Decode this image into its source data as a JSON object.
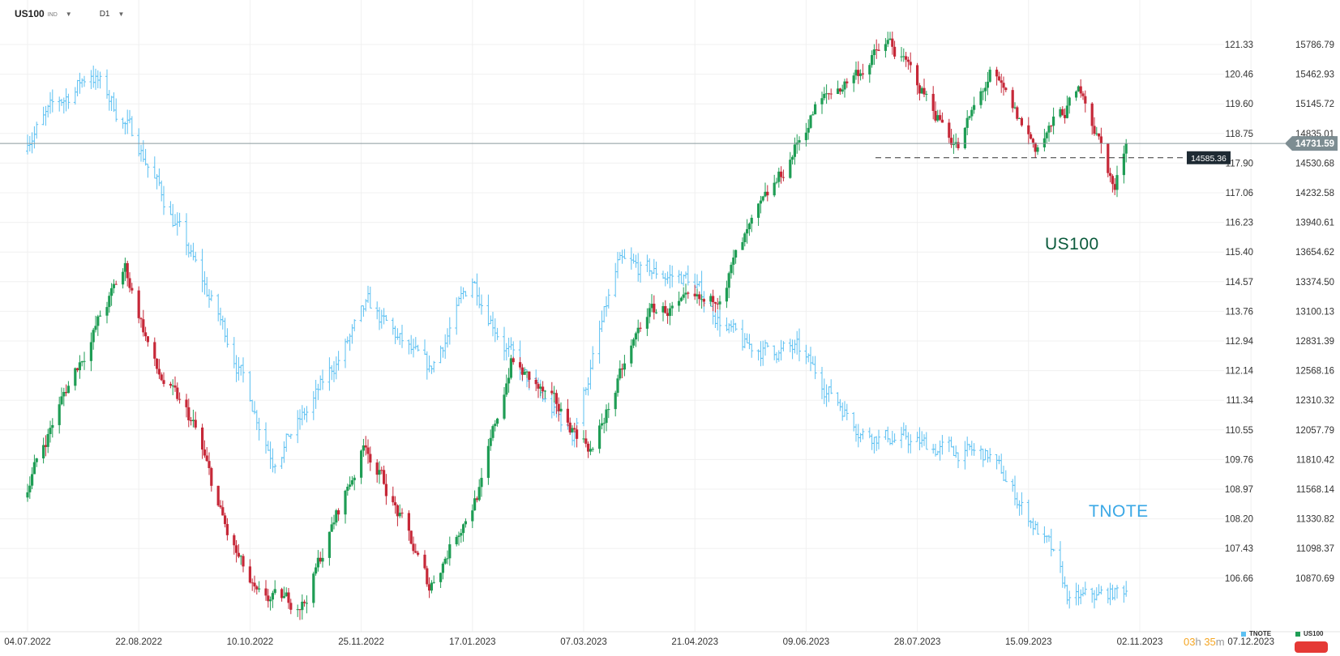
{
  "header": {
    "symbol": "US100",
    "asset_class": "IND",
    "timeframe": "D1"
  },
  "labels": {
    "us100": "US100",
    "tnote": "TNOTE"
  },
  "legend": {
    "tnote": "TNOTE",
    "us100": "US100"
  },
  "countdown": {
    "hours": "03",
    "hours_unit": "h",
    "minutes": "35",
    "minutes_unit": "m"
  },
  "colors": {
    "up": "#1f9d55",
    "down": "#c62838",
    "tnote": "#5bc0f2",
    "grid": "#f0f0f0",
    "price_line": "#8a9a9e",
    "label_bg": "#1e2a33"
  },
  "chart_data": {
    "type": "candlestick",
    "x_ticks": [
      "04.07.2022",
      "22.08.2022",
      "10.10.2022",
      "25.11.2022",
      "17.01.2023",
      "07.03.2023",
      "21.04.2023",
      "09.06.2023",
      "28.07.2023",
      "15.09.2023",
      "02.11.2023",
      "07.12.2023"
    ],
    "left_axis_ticks": [
      "121.33",
      "120.46",
      "119.60",
      "118.75",
      "117.90",
      "117.06",
      "116.23",
      "115.40",
      "114.57",
      "113.76",
      "112.94",
      "112.14",
      "111.34",
      "110.55",
      "109.76",
      "108.97",
      "108.20",
      "107.43",
      "106.66"
    ],
    "right_axis_ticks": [
      "15786.79",
      "15462.93",
      "15145.72",
      "14835.01",
      "14530.68",
      "14232.58",
      "13940.61",
      "13654.62",
      "13374.50",
      "13100.13",
      "12831.39",
      "12568.16",
      "12310.32",
      "12057.79",
      "11810.42",
      "11568.14",
      "11330.82",
      "11098.37",
      "10870.69"
    ],
    "current_price_label": "14731.59",
    "support_level_label": "14585.36",
    "series": [
      {
        "name": "US100",
        "style": "candles",
        "axis": "right",
        "approx_path": [
          {
            "date": "04.07.2022",
            "close": 11600
          },
          {
            "date": "22.07.2022",
            "close": 12450
          },
          {
            "date": "16.08.2022",
            "close": 13500
          },
          {
            "date": "30.08.2022",
            "close": 12550
          },
          {
            "date": "15.09.2022",
            "close": 12100
          },
          {
            "date": "30.09.2022",
            "close": 11200
          },
          {
            "date": "13.10.2022",
            "close": 10700
          },
          {
            "date": "03.11.2022",
            "close": 10700
          },
          {
            "date": "30.11.2022",
            "close": 11950
          },
          {
            "date": "28.12.2022",
            "close": 10800
          },
          {
            "date": "20.01.2023",
            "close": 11600
          },
          {
            "date": "02.02.2023",
            "close": 12650
          },
          {
            "date": "10.03.2023",
            "close": 11900
          },
          {
            "date": "03.04.2023",
            "close": 13100
          },
          {
            "date": "01.05.2023",
            "close": 13150
          },
          {
            "date": "01.06.2023",
            "close": 14400
          },
          {
            "date": "16.06.2023",
            "close": 15100
          },
          {
            "date": "19.07.2023",
            "close": 15800
          },
          {
            "date": "18.08.2023",
            "close": 14700
          },
          {
            "date": "01.09.2023",
            "close": 15450
          },
          {
            "date": "21.09.2023",
            "close": 14700
          },
          {
            "date": "12.10.2023",
            "close": 15300
          },
          {
            "date": "26.10.2023",
            "close": 14250
          },
          {
            "date": "31.10.2023",
            "close": 14731.59
          }
        ]
      },
      {
        "name": "TNOTE",
        "style": "ohlc",
        "axis": "left",
        "approx_path": [
          {
            "date": "04.07.2022",
            "close": 118.8
          },
          {
            "date": "01.08.2022",
            "close": 120.6
          },
          {
            "date": "22.08.2022",
            "close": 118.6
          },
          {
            "date": "30.09.2022",
            "close": 113.3
          },
          {
            "date": "20.10.2022",
            "close": 110.0
          },
          {
            "date": "04.11.2022",
            "close": 111.2
          },
          {
            "date": "01.12.2022",
            "close": 114.1
          },
          {
            "date": "28.12.2022",
            "close": 112.3
          },
          {
            "date": "16.01.2023",
            "close": 114.9
          },
          {
            "date": "06.02.2023",
            "close": 112.3
          },
          {
            "date": "01.03.2023",
            "close": 110.6
          },
          {
            "date": "21.03.2023",
            "close": 115.2
          },
          {
            "date": "21.04.2023",
            "close": 114.9
          },
          {
            "date": "15.05.2023",
            "close": 113.0
          },
          {
            "date": "08.06.2023",
            "close": 112.9
          },
          {
            "date": "07.07.2023",
            "close": 110.7
          },
          {
            "date": "11.08.2023",
            "close": 110.2
          },
          {
            "date": "01.09.2023",
            "close": 110.0
          },
          {
            "date": "27.09.2023",
            "close": 107.5
          },
          {
            "date": "06.10.2023",
            "close": 106.0
          },
          {
            "date": "31.10.2023",
            "close": 106.3
          }
        ]
      }
    ],
    "grid": true
  }
}
